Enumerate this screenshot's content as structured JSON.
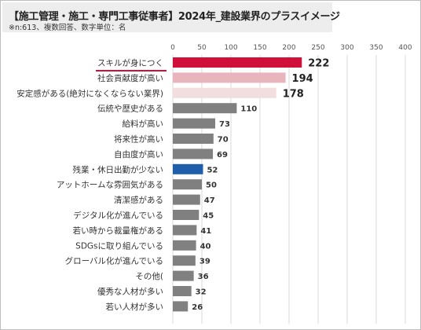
{
  "header": {
    "title": "【施工管理・施工・専門工事従事者】2024年_建設業界のプラスイメージ",
    "subtitle": "※n:613、複数回答、数字単位：名"
  },
  "colors": {
    "highlight_red": "#d0103a",
    "pink": "#e8b5bd",
    "light_pink": "#f2dede",
    "gray": "#808080",
    "blue": "#1f5ea8",
    "underline": "#d0103a"
  },
  "chart_data": {
    "type": "bar",
    "orientation": "horizontal",
    "categories": [
      "スキルが身につく",
      "社会貢献度が高い",
      "安定感がある(絶対になくならない業界)",
      "伝統や歴史がある",
      "給料が高い",
      "将来性が高い",
      "自由度が高い",
      "残業・休日出勤が少ない",
      "アットホームな雰囲気がある",
      "清潔感がある",
      "デジタル化が進んでいる",
      "若い時から裁量権がある",
      "SDGsに取り組んでいる",
      "グローバル化が進んでいる",
      "その他(",
      "優秀な人材が多い",
      "若い人材が多い"
    ],
    "values": [
      222,
      194,
      178,
      110,
      73,
      70,
      69,
      52,
      50,
      47,
      45,
      41,
      40,
      39,
      36,
      32,
      26
    ],
    "bar_colors": [
      "#d0103a",
      "#e8b5bd",
      "#f2dede",
      "#808080",
      "#808080",
      "#808080",
      "#808080",
      "#1f5ea8",
      "#808080",
      "#808080",
      "#808080",
      "#808080",
      "#808080",
      "#808080",
      "#808080",
      "#808080",
      "#808080"
    ],
    "xlim": [
      0,
      400
    ],
    "xticks": [
      "0",
      "50",
      "100",
      "150",
      "200",
      "250",
      "300",
      "350",
      "400"
    ],
    "grid": true,
    "legend": "none"
  }
}
